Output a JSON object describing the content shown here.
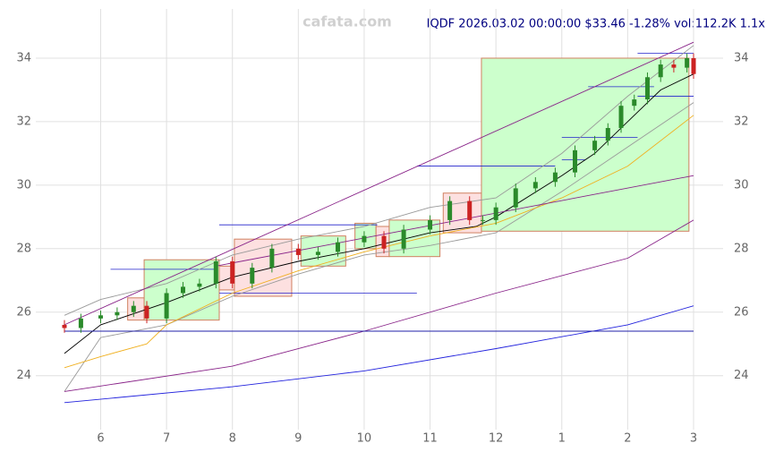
{
  "chart_data": {
    "type": "candlestick",
    "title": "IQDF 2026.03.02 00:00:00 $33.46 -1.28% vol:112.2K 1.1x",
    "watermark": "cafata.com",
    "grid": true,
    "xlim": [
      5.45,
      15.0
    ],
    "xticks": [
      6,
      7,
      8,
      9,
      10,
      11,
      12,
      {
        "value": 13,
        "label": "1"
      },
      {
        "value": 14,
        "label": "2"
      },
      {
        "value": 15,
        "label": "3"
      }
    ],
    "ylim": [
      22.3,
      35.55
    ],
    "yticks": [
      24,
      26,
      28,
      30,
      32,
      34
    ],
    "up_color": "#2a8a2a",
    "down_color": "#cc2222",
    "candles": {
      "x": [
        5.45,
        5.7,
        6,
        6.25,
        6.5,
        6.7,
        7,
        7.25,
        7.5,
        7.75,
        8,
        8.3,
        8.6,
        9,
        9.3,
        9.6,
        10,
        10.3,
        10.6,
        11,
        11.3,
        11.6,
        11.8,
        12,
        12.3,
        12.6,
        12.9,
        13.2,
        13.5,
        13.7,
        13.9,
        14.1,
        14.3,
        14.5,
        14.7,
        14.9,
        15.0
      ],
      "open": [
        25.6,
        25.5,
        25.8,
        25.9,
        26.0,
        26.2,
        25.8,
        26.6,
        26.8,
        26.9,
        27.6,
        26.9,
        27.4,
        28.0,
        27.8,
        27.9,
        28.2,
        28.4,
        28.0,
        28.6,
        28.9,
        29.5,
        28.9,
        28.9,
        29.3,
        29.9,
        30.1,
        30.4,
        31.1,
        31.4,
        31.8,
        32.5,
        32.7,
        33.4,
        33.8,
        33.7,
        34.0
      ],
      "high": [
        25.75,
        25.95,
        26.05,
        26.15,
        26.35,
        26.35,
        26.75,
        26.95,
        27.05,
        27.75,
        27.75,
        27.55,
        28.15,
        28.15,
        28.05,
        28.35,
        28.55,
        28.55,
        28.75,
        29.05,
        29.65,
        29.65,
        29.05,
        29.45,
        30.05,
        30.25,
        30.55,
        31.25,
        31.55,
        31.95,
        32.65,
        32.85,
        33.55,
        33.95,
        33.95,
        34.15,
        34.15
      ],
      "low": [
        25.35,
        25.35,
        25.65,
        25.75,
        25.85,
        25.65,
        25.65,
        26.45,
        26.65,
        26.75,
        26.75,
        26.75,
        27.25,
        27.65,
        27.65,
        27.75,
        28.05,
        27.85,
        27.85,
        28.45,
        28.75,
        28.75,
        28.75,
        28.75,
        29.15,
        29.75,
        29.95,
        30.25,
        30.95,
        31.25,
        31.65,
        32.35,
        32.55,
        33.25,
        33.55,
        33.55,
        33.35
      ],
      "close": [
        25.5,
        25.8,
        25.9,
        26.0,
        26.2,
        25.8,
        26.6,
        26.8,
        26.9,
        27.6,
        26.9,
        27.4,
        28.0,
        27.8,
        27.9,
        28.2,
        28.4,
        28.0,
        28.6,
        28.9,
        29.5,
        28.9,
        28.9,
        29.3,
        29.9,
        30.1,
        30.4,
        31.1,
        31.4,
        31.8,
        32.5,
        32.7,
        33.4,
        33.8,
        33.7,
        34.0,
        33.5
      ]
    },
    "lines": [
      {
        "color": "#999999",
        "x": [
          5.45,
          6,
          7,
          8,
          9,
          10,
          11,
          12,
          13,
          14,
          15
        ],
        "values": [
          25.9,
          26.4,
          26.9,
          27.8,
          28.3,
          28.7,
          29.3,
          29.6,
          31.0,
          32.8,
          34.4
        ]
      },
      {
        "color": "#999999",
        "x": [
          5.45,
          6,
          7,
          8,
          9,
          10,
          11,
          12,
          13,
          14,
          15
        ],
        "values": [
          23.5,
          25.2,
          25.6,
          26.5,
          27.2,
          27.8,
          28.1,
          28.5,
          29.8,
          31.2,
          32.6
        ]
      },
      {
        "color": "#000000",
        "x": [
          5.45,
          6,
          7,
          8,
          9,
          10,
          11,
          11.7,
          12,
          13,
          13.5,
          14,
          14.5,
          15
        ],
        "values": [
          24.7,
          25.6,
          26.3,
          27.1,
          27.6,
          28.0,
          28.5,
          28.7,
          29.0,
          30.3,
          31.0,
          32.0,
          33.0,
          33.5
        ]
      },
      {
        "color": "#f0b020",
        "x": [
          5.45,
          6,
          6.7,
          7,
          8,
          9,
          10,
          11,
          12,
          13,
          14,
          15
        ],
        "values": [
          24.25,
          24.6,
          25.0,
          25.6,
          26.6,
          27.3,
          27.9,
          28.4,
          28.8,
          29.6,
          30.6,
          32.2
        ]
      },
      {
        "color": "#882288",
        "x": [
          5.45,
          15
        ],
        "values": [
          25.6,
          34.5
        ]
      },
      {
        "color": "#882288",
        "x": [
          7.75,
          15
        ],
        "values": [
          27.45,
          30.3
        ]
      },
      {
        "color": "#882288",
        "x": [
          5.45,
          8,
          10,
          12,
          14,
          15
        ],
        "values": [
          23.5,
          24.3,
          25.4,
          26.6,
          27.7,
          28.9
        ]
      },
      {
        "color": "#2222dd",
        "x": [
          5.45,
          8,
          10,
          12,
          14,
          15
        ],
        "values": [
          23.15,
          23.65,
          24.15,
          24.85,
          25.6,
          26.2
        ]
      },
      {
        "color": "#2222aa",
        "x": [
          5.45,
          15
        ],
        "values": [
          25.4,
          25.4
        ]
      }
    ],
    "boxes": [
      {
        "x0": 6.41,
        "x1": 6.66,
        "y0": 25.75,
        "y1": 26.45,
        "fill": "#fde0e0"
      },
      {
        "x0": 6.66,
        "x1": 7.8,
        "y0": 25.75,
        "y1": 27.65,
        "fill": "#ccffcc"
      },
      {
        "x0": 7.8,
        "x1": 8.03,
        "y0": 26.7,
        "y1": 27.45,
        "fill": "#fde0e0"
      },
      {
        "x0": 8.03,
        "x1": 8.9,
        "y0": 26.5,
        "y1": 28.3,
        "fill": "#fde0e0"
      },
      {
        "x0": 9.04,
        "x1": 9.72,
        "y0": 27.45,
        "y1": 28.4,
        "fill": "#ccffcc"
      },
      {
        "x0": 9.86,
        "x1": 10.18,
        "y0": 28.0,
        "y1": 28.8,
        "fill": "#ccffcc"
      },
      {
        "x0": 10.18,
        "x1": 10.38,
        "y0": 27.75,
        "y1": 28.7,
        "fill": "#fde0e0"
      },
      {
        "x0": 10.38,
        "x1": 11.15,
        "y0": 27.75,
        "y1": 28.9,
        "fill": "#ccffcc"
      },
      {
        "x0": 11.2,
        "x1": 11.78,
        "y0": 28.5,
        "y1": 29.75,
        "fill": "#fde0e0"
      },
      {
        "x0": 11.78,
        "x1": 14.93,
        "y0": 28.55,
        "y1": 34.0,
        "fill": "#ccffcc"
      }
    ],
    "levels": [
      {
        "x0": 6.15,
        "x1": 7.72,
        "y": 27.35
      },
      {
        "x0": 7.8,
        "x1": 10.8,
        "y": 26.6
      },
      {
        "x0": 7.8,
        "x1": 10.2,
        "y": 28.75
      },
      {
        "x0": 10.8,
        "x1": 12.9,
        "y": 30.6
      },
      {
        "x0": 13.0,
        "x1": 13.35,
        "y": 30.8
      },
      {
        "x0": 13.0,
        "x1": 14.15,
        "y": 31.5
      },
      {
        "x0": 13.4,
        "x1": 14.4,
        "y": 33.1
      },
      {
        "x0": 14.15,
        "x1": 15.0,
        "y": 34.15
      },
      {
        "x0": 14.15,
        "x1": 15.0,
        "y": 32.8
      }
    ]
  }
}
